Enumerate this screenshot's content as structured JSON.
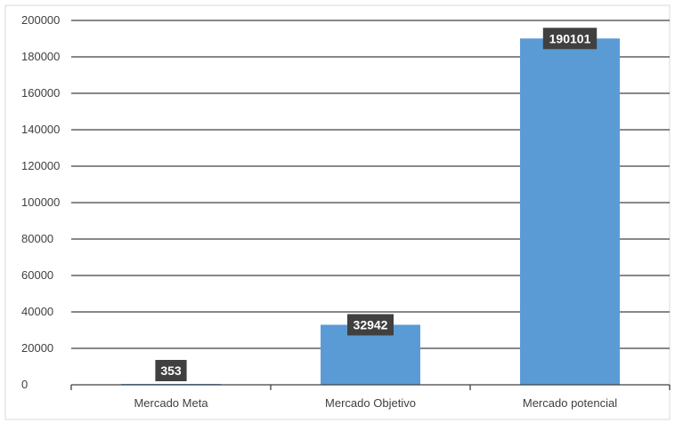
{
  "chart_data": {
    "type": "bar",
    "categories": [
      "Mercado Meta",
      "Mercado Objetivo",
      "Mercado potencial"
    ],
    "values": [
      353,
      32942,
      190101
    ],
    "data_labels": [
      "353",
      "32942",
      "190101"
    ],
    "y_ticks": [
      "0",
      "20000",
      "40000",
      "60000",
      "80000",
      "100000",
      "120000",
      "140000",
      "160000",
      "180000",
      "200000"
    ],
    "ylim": [
      0,
      200000
    ],
    "grid": true,
    "legend": "none",
    "title": "",
    "xlabel": "",
    "ylabel": "",
    "colors": {
      "bar": "#5b9bd5",
      "label_bg": "#404040",
      "label_text": "#ffffff",
      "grid": "#404040",
      "axis_text": "#404040"
    }
  }
}
